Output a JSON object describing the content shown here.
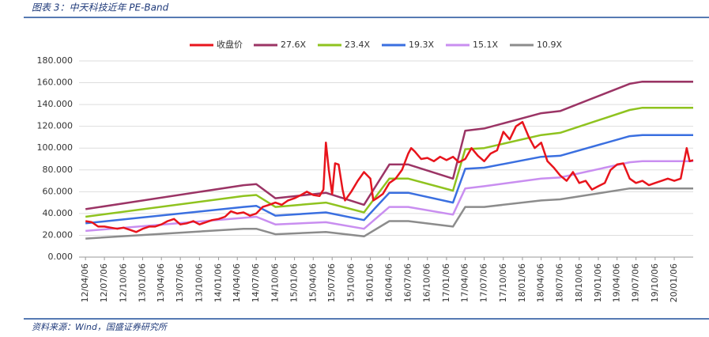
{
  "chart_data": {
    "type": "line",
    "title": "图表 3：中天科技近年 PE-Band",
    "source": "资料来源：Wind，国盛证券研究所",
    "xlim": [
      "12/03/06",
      "20/04/06"
    ],
    "xticks": [
      "12/04/06",
      "12/07/06",
      "12/10/06",
      "13/01/06",
      "13/04/06",
      "13/07/06",
      "13/10/06",
      "14/01/06",
      "14/04/06",
      "14/07/06",
      "14/10/06",
      "15/01/06",
      "15/04/06",
      "15/07/06",
      "15/10/06",
      "16/01/06",
      "16/04/06",
      "16/07/06",
      "16/10/06",
      "17/01/06",
      "17/04/06",
      "17/07/06",
      "17/10/06",
      "18/01/06",
      "18/04/06",
      "18/07/06",
      "18/10/06",
      "19/01/06",
      "19/04/06",
      "19/07/06",
      "19/10/06",
      "20/01/06"
    ],
    "ylim": [
      0,
      180
    ],
    "yticks": [
      {
        "value": 0,
        "label": "0.000"
      },
      {
        "value": 20,
        "label": "20.000"
      },
      {
        "value": 40,
        "label": "40.000"
      },
      {
        "value": 60,
        "label": "60.000"
      },
      {
        "value": 80,
        "label": "80.000"
      },
      {
        "value": 100,
        "label": "100.000"
      },
      {
        "value": 120,
        "label": "120.000"
      },
      {
        "value": 140,
        "label": "140.000"
      },
      {
        "value": 160,
        "label": "160.000"
      },
      {
        "value": 180,
        "label": "180.000"
      }
    ],
    "grid": true,
    "legend": "top",
    "series": [
      {
        "name": "收盘价",
        "color": "#e8141c",
        "x": [
          "12/04/06",
          "12/05/06",
          "12/06/06",
          "12/07/06",
          "12/08/06",
          "12/09/06",
          "12/10/06",
          "12/11/06",
          "12/12/06",
          "13/01/06",
          "13/02/06",
          "13/03/06",
          "13/04/06",
          "13/05/06",
          "13/06/06",
          "13/07/06",
          "13/08/06",
          "13/09/06",
          "13/10/06",
          "13/11/06",
          "13/12/06",
          "14/01/06",
          "14/02/06",
          "14/03/06",
          "14/04/06",
          "14/05/06",
          "14/06/06",
          "14/07/06",
          "14/08/06",
          "14/09/06",
          "14/10/06",
          "14/11/06",
          "14/12/06",
          "15/01/06",
          "15/02/06",
          "15/03/06",
          "15/04/06",
          "15/05/06",
          "15/05/25",
          "15/06/06",
          "15/06/20",
          "15/07/06",
          "15/07/20",
          "15/08/06",
          "15/08/25",
          "15/09/06",
          "15/10/06",
          "15/11/06",
          "15/12/06",
          "16/01/06",
          "16/01/20",
          "16/02/06",
          "16/03/06",
          "16/04/06",
          "16/05/06",
          "16/06/06",
          "16/07/06",
          "16/07/20",
          "16/08/06",
          "16/09/06",
          "16/10/06",
          "16/11/06",
          "16/12/06",
          "17/01/06",
          "17/02/06",
          "17/03/06",
          "17/04/06",
          "17/05/06",
          "17/06/06",
          "17/07/06",
          "17/08/06",
          "17/09/06",
          "17/10/06",
          "17/11/06",
          "17/12/06",
          "18/01/06",
          "18/02/06",
          "18/03/06",
          "18/04/06",
          "18/05/06",
          "18/06/06",
          "18/07/06",
          "18/08/06",
          "18/09/06",
          "18/10/06",
          "18/11/06",
          "18/12/06",
          "19/01/06",
          "19/02/06",
          "19/03/06",
          "19/04/06",
          "19/05/06",
          "19/06/06",
          "19/07/06",
          "19/08/06",
          "19/09/06",
          "19/10/06",
          "19/11/06",
          "19/12/06",
          "20/01/06",
          "20/02/06",
          "20/03/06",
          "20/03/20",
          "20/04/06"
        ],
        "values": [
          33,
          32,
          28,
          28,
          27,
          26,
          27,
          25,
          23,
          26,
          28,
          28,
          30,
          33,
          35,
          30,
          31,
          33,
          30,
          32,
          34,
          35,
          37,
          42,
          40,
          41,
          38,
          40,
          46,
          48,
          50,
          48,
          52,
          54,
          57,
          60,
          57,
          56,
          62,
          105,
          80,
          58,
          86,
          85,
          62,
          52,
          60,
          70,
          78,
          72,
          52,
          54,
          58,
          68,
          72,
          80,
          95,
          100,
          97,
          90,
          91,
          88,
          92,
          89,
          92,
          87,
          90,
          100,
          93,
          88,
          95,
          98,
          115,
          108,
          120,
          124,
          110,
          100,
          105,
          88,
          82,
          75,
          70,
          78,
          68,
          70,
          62,
          65,
          68,
          80,
          85,
          86,
          72,
          68,
          70,
          66,
          68,
          70,
          72,
          70,
          72,
          100,
          88,
          89
        ]
      },
      {
        "name": "27.6X",
        "color": "#9b3465",
        "x": [
          "12/04/06",
          "14/05/06",
          "14/07/06",
          "14/10/06",
          "15/06/06",
          "15/12/06",
          "16/04/06",
          "16/07/06",
          "17/02/06",
          "17/04/06",
          "17/07/06",
          "18/04/06",
          "18/07/06",
          "19/06/06",
          "19/08/06",
          "20/04/06"
        ],
        "values": [
          44,
          66,
          67,
          54,
          59,
          48,
          85,
          85,
          72,
          116,
          118,
          132,
          134,
          159,
          161,
          161
        ]
      },
      {
        "name": "23.4X",
        "color": "#8fc31f",
        "x": [
          "12/04/06",
          "14/05/06",
          "14/07/06",
          "14/10/06",
          "15/06/06",
          "15/12/06",
          "16/04/06",
          "16/07/06",
          "17/02/06",
          "17/04/06",
          "17/07/06",
          "18/04/06",
          "18/07/06",
          "19/06/06",
          "19/08/06",
          "20/04/06"
        ],
        "values": [
          37,
          56,
          57,
          46,
          50,
          41,
          72,
          72,
          61,
          99,
          100,
          112,
          114,
          135,
          137,
          137
        ]
      },
      {
        "name": "19.3X",
        "color": "#3a6fe0",
        "x": [
          "12/04/06",
          "14/05/06",
          "14/07/06",
          "14/10/06",
          "15/06/06",
          "15/12/06",
          "16/04/06",
          "16/07/06",
          "17/02/06",
          "17/04/06",
          "17/07/06",
          "18/04/06",
          "18/07/06",
          "19/06/06",
          "19/08/06",
          "20/04/06"
        ],
        "values": [
          31,
          46,
          47,
          38,
          41,
          34,
          59,
          59,
          50,
          81,
          82,
          92,
          93,
          111,
          112,
          112
        ]
      },
      {
        "name": "15.1X",
        "color": "#c98ef0",
        "x": [
          "12/04/06",
          "14/05/06",
          "14/07/06",
          "14/10/06",
          "15/06/06",
          "15/12/06",
          "16/04/06",
          "16/07/06",
          "17/02/06",
          "17/04/06",
          "17/07/06",
          "18/04/06",
          "18/07/06",
          "19/06/06",
          "19/08/06",
          "20/04/06"
        ],
        "values": [
          24,
          36,
          37,
          30,
          32,
          26,
          46,
          46,
          39,
          63,
          65,
          72,
          73,
          87,
          88,
          88
        ]
      },
      {
        "name": "10.9X",
        "color": "#8c8c8c",
        "x": [
          "12/04/06",
          "14/05/06",
          "14/07/06",
          "14/10/06",
          "15/06/06",
          "15/12/06",
          "16/04/06",
          "16/07/06",
          "17/02/06",
          "17/04/06",
          "17/07/06",
          "18/04/06",
          "18/07/06",
          "19/06/06",
          "19/08/06",
          "20/04/06"
        ],
        "values": [
          17,
          26,
          26,
          21,
          23,
          19,
          33,
          33,
          28,
          46,
          46,
          52,
          53,
          63,
          63,
          63
        ]
      }
    ]
  }
}
